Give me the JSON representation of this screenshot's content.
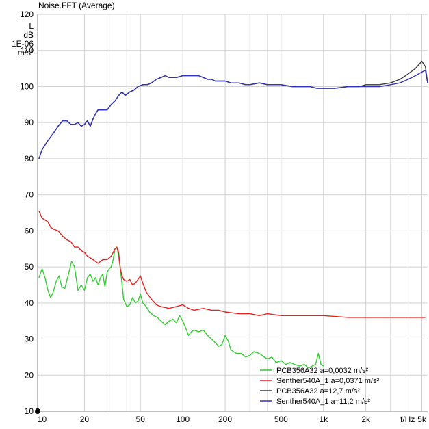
{
  "window_title": "Noise.FFT (Average)",
  "colors": {
    "background": "#ffffff",
    "grid": "#d0d0d0",
    "axis": "#7f7f7f"
  },
  "chart_data": {
    "type": "line",
    "title": "",
    "x_scale": "log",
    "xlim": [
      9.3,
      5500
    ],
    "ylim": [
      10,
      120
    ],
    "grid": true,
    "legend_placement": "bottom-right",
    "y_unit_label": [
      "L",
      "dB",
      "1E-06",
      "m/s²"
    ],
    "x_unit_label": "f/Hz",
    "y_ticks": [
      {
        "value": 10,
        "label": "10"
      },
      {
        "value": 20,
        "label": "20"
      },
      {
        "value": 30,
        "label": "30"
      },
      {
        "value": 40,
        "label": "40"
      },
      {
        "value": 50,
        "label": "50"
      },
      {
        "value": 60,
        "label": "60"
      },
      {
        "value": 70,
        "label": "70"
      },
      {
        "value": 80,
        "label": "80"
      },
      {
        "value": 90,
        "label": "90"
      },
      {
        "value": 100,
        "label": "100"
      },
      {
        "value": 110,
        "label": "110"
      },
      {
        "value": 120,
        "label": "120"
      }
    ],
    "x_ticks": [
      {
        "value": 10,
        "label": "10"
      },
      {
        "value": 20,
        "label": "20"
      },
      {
        "value": 50,
        "label": "50"
      },
      {
        "value": 100,
        "label": "100"
      },
      {
        "value": 200,
        "label": "200"
      },
      {
        "value": 500,
        "label": "500"
      },
      {
        "value": 1000,
        "label": "1k"
      },
      {
        "value": 2000,
        "label": "2k"
      },
      {
        "value": 5000,
        "label": "5k"
      }
    ],
    "x_minor_grid": [
      30,
      40,
      300,
      400,
      3000,
      4000
    ],
    "series": [
      {
        "name": "PCB356A32 a=0,0032 m/s²",
        "color": "#33cc33",
        "points": [
          [
            9.5,
            47
          ],
          [
            10,
            49.5
          ],
          [
            10.5,
            47
          ],
          [
            11,
            43.5
          ],
          [
            11.5,
            41.5
          ],
          [
            12,
            43
          ],
          [
            12.6,
            46
          ],
          [
            13.2,
            47.5
          ],
          [
            13.8,
            44.5
          ],
          [
            14.5,
            44
          ],
          [
            15.3,
            47.5
          ],
          [
            16.2,
            51.5
          ],
          [
            17,
            50
          ],
          [
            18,
            43.5
          ],
          [
            19,
            45
          ],
          [
            20,
            43.5
          ],
          [
            21,
            47
          ],
          [
            22,
            48
          ],
          [
            23,
            46
          ],
          [
            24,
            47
          ],
          [
            25,
            45
          ],
          [
            26,
            47
          ],
          [
            27,
            48
          ],
          [
            28,
            44.5
          ],
          [
            29,
            48.5
          ],
          [
            30,
            49.5
          ],
          [
            31,
            50
          ],
          [
            32,
            52
          ],
          [
            33,
            55
          ],
          [
            34,
            55.5
          ],
          [
            35,
            53
          ],
          [
            36,
            49.5
          ],
          [
            38,
            41
          ],
          [
            40,
            39
          ],
          [
            42,
            39.5
          ],
          [
            44,
            41.5
          ],
          [
            46,
            40
          ],
          [
            48,
            40.5
          ],
          [
            50,
            42.5
          ],
          [
            52,
            40
          ],
          [
            55,
            39
          ],
          [
            58,
            37.5
          ],
          [
            62,
            36.5
          ],
          [
            66,
            36
          ],
          [
            70,
            35
          ],
          [
            75,
            34
          ],
          [
            80,
            35
          ],
          [
            85,
            35.5
          ],
          [
            90,
            34.5
          ],
          [
            95,
            36.5
          ],
          [
            100,
            35
          ],
          [
            105,
            33
          ],
          [
            110,
            31
          ],
          [
            115,
            32
          ],
          [
            120,
            32.5
          ],
          [
            130,
            32
          ],
          [
            140,
            32.5
          ],
          [
            150,
            31
          ],
          [
            160,
            30
          ],
          [
            170,
            29
          ],
          [
            180,
            28
          ],
          [
            190,
            28.5
          ],
          [
            200,
            31
          ],
          [
            210,
            29.5
          ],
          [
            220,
            27
          ],
          [
            240,
            26
          ],
          [
            260,
            26
          ],
          [
            280,
            25
          ],
          [
            300,
            25.5
          ],
          [
            320,
            26.5
          ],
          [
            350,
            26
          ],
          [
            380,
            25
          ],
          [
            400,
            24.5
          ],
          [
            430,
            25
          ],
          [
            460,
            23.5
          ],
          [
            500,
            24
          ],
          [
            540,
            23
          ],
          [
            580,
            23.5
          ],
          [
            620,
            23
          ],
          [
            680,
            22.5
          ],
          [
            730,
            23
          ],
          [
            780,
            22
          ],
          [
            830,
            22.5
          ],
          [
            880,
            23
          ],
          [
            920,
            26
          ],
          [
            960,
            23
          ],
          [
            1000,
            22.5
          ]
        ]
      },
      {
        "name": "Senther540A_1 a=0,0371 m/s²",
        "color": "#e82020",
        "points": [
          [
            9.5,
            65.5
          ],
          [
            10,
            63.5
          ],
          [
            10.5,
            63
          ],
          [
            11,
            62.5
          ],
          [
            11.5,
            61
          ],
          [
            12,
            60.5
          ],
          [
            13,
            60
          ],
          [
            14,
            58.5
          ],
          [
            15,
            57.5
          ],
          [
            16,
            57
          ],
          [
            17,
            55.5
          ],
          [
            18,
            55.5
          ],
          [
            19,
            54.5
          ],
          [
            20,
            54
          ],
          [
            21,
            53
          ],
          [
            22,
            52.5
          ],
          [
            23,
            52
          ],
          [
            25,
            51
          ],
          [
            27,
            52
          ],
          [
            29,
            52
          ],
          [
            31,
            53
          ],
          [
            33,
            55
          ],
          [
            34,
            55.5
          ],
          [
            35,
            54
          ],
          [
            36,
            49.5
          ],
          [
            37,
            47.5
          ],
          [
            38,
            46.5
          ],
          [
            40,
            46
          ],
          [
            42,
            46.5
          ],
          [
            44,
            45
          ],
          [
            46,
            45.5
          ],
          [
            48,
            46.5
          ],
          [
            50,
            47.5
          ],
          [
            52,
            45.5
          ],
          [
            55,
            43
          ],
          [
            60,
            41
          ],
          [
            65,
            39.5
          ],
          [
            70,
            39
          ],
          [
            80,
            38.5
          ],
          [
            90,
            39
          ],
          [
            100,
            39.5
          ],
          [
            110,
            38.5
          ],
          [
            120,
            38
          ],
          [
            140,
            38.5
          ],
          [
            160,
            38
          ],
          [
            180,
            38
          ],
          [
            200,
            37.5
          ],
          [
            250,
            37
          ],
          [
            300,
            37
          ],
          [
            350,
            36.5
          ],
          [
            400,
            37
          ],
          [
            500,
            36.5
          ],
          [
            600,
            36.5
          ],
          [
            800,
            36.5
          ],
          [
            1000,
            36.5
          ],
          [
            1500,
            36
          ],
          [
            2000,
            36
          ],
          [
            3000,
            36
          ],
          [
            4000,
            36
          ],
          [
            5300,
            36
          ]
        ]
      },
      {
        "name": "PCB356A32 a=12,7 m/s²",
        "color": "#3a3a3a",
        "points": [
          [
            9.5,
            80
          ],
          [
            10,
            82.5
          ],
          [
            11,
            85
          ],
          [
            12,
            87
          ],
          [
            13,
            89
          ],
          [
            14,
            90.5
          ],
          [
            15,
            90.5
          ],
          [
            16,
            89.5
          ],
          [
            17,
            89.5
          ],
          [
            18,
            90
          ],
          [
            19,
            89
          ],
          [
            20,
            89.5
          ],
          [
            21,
            90.5
          ],
          [
            22,
            89
          ],
          [
            23,
            91
          ],
          [
            24,
            92.5
          ],
          [
            25,
            93.5
          ],
          [
            27,
            93.5
          ],
          [
            29,
            93.5
          ],
          [
            31,
            95
          ],
          [
            33,
            96
          ],
          [
            35,
            97.5
          ],
          [
            37,
            98.5
          ],
          [
            39,
            97.5
          ],
          [
            42,
            98.5
          ],
          [
            45,
            99
          ],
          [
            48,
            100
          ],
          [
            52,
            100.5
          ],
          [
            56,
            100.5
          ],
          [
            60,
            101
          ],
          [
            65,
            102
          ],
          [
            70,
            102.5
          ],
          [
            75,
            103
          ],
          [
            80,
            102.5
          ],
          [
            90,
            102.5
          ],
          [
            100,
            103
          ],
          [
            110,
            103
          ],
          [
            120,
            103
          ],
          [
            130,
            103
          ],
          [
            140,
            102.5
          ],
          [
            150,
            102
          ],
          [
            160,
            102
          ],
          [
            170,
            101.5
          ],
          [
            180,
            101.5
          ],
          [
            200,
            101.5
          ],
          [
            220,
            101
          ],
          [
            250,
            101
          ],
          [
            280,
            100.5
          ],
          [
            300,
            100.5
          ],
          [
            350,
            101
          ],
          [
            400,
            100.5
          ],
          [
            450,
            100.5
          ],
          [
            500,
            100.5
          ],
          [
            600,
            100
          ],
          [
            700,
            100
          ],
          [
            800,
            100
          ],
          [
            900,
            99.5
          ],
          [
            1000,
            99.5
          ],
          [
            1200,
            99.5
          ],
          [
            1500,
            100
          ],
          [
            1800,
            100
          ],
          [
            2000,
            100.5
          ],
          [
            2500,
            100.5
          ],
          [
            3000,
            101
          ],
          [
            3500,
            102
          ],
          [
            4000,
            103.5
          ],
          [
            4500,
            105
          ],
          [
            5000,
            107
          ],
          [
            5300,
            105.5
          ],
          [
            5500,
            101
          ]
        ]
      },
      {
        "name": "Senther540A_1 a=11,2 m/s²",
        "color": "#3030b8",
        "points": [
          [
            9.5,
            80
          ],
          [
            10,
            82.5
          ],
          [
            11,
            85
          ],
          [
            12,
            87
          ],
          [
            13,
            89
          ],
          [
            14,
            90.5
          ],
          [
            15,
            90.5
          ],
          [
            16,
            89.5
          ],
          [
            17,
            89.5
          ],
          [
            18,
            90
          ],
          [
            19,
            89
          ],
          [
            20,
            89.5
          ],
          [
            21,
            90.5
          ],
          [
            22,
            89
          ],
          [
            23,
            91
          ],
          [
            24,
            92.5
          ],
          [
            25,
            93.5
          ],
          [
            27,
            93.5
          ],
          [
            29,
            93.5
          ],
          [
            31,
            95
          ],
          [
            33,
            96
          ],
          [
            35,
            97.5
          ],
          [
            37,
            98.5
          ],
          [
            39,
            97.5
          ],
          [
            42,
            98.5
          ],
          [
            45,
            99
          ],
          [
            48,
            100
          ],
          [
            52,
            100.5
          ],
          [
            56,
            100.5
          ],
          [
            60,
            101
          ],
          [
            65,
            102
          ],
          [
            70,
            102.5
          ],
          [
            75,
            103
          ],
          [
            80,
            102.5
          ],
          [
            90,
            102.5
          ],
          [
            100,
            103
          ],
          [
            110,
            103
          ],
          [
            120,
            103
          ],
          [
            130,
            103
          ],
          [
            140,
            102.5
          ],
          [
            150,
            102
          ],
          [
            160,
            102
          ],
          [
            170,
            101.5
          ],
          [
            180,
            101.5
          ],
          [
            200,
            101.5
          ],
          [
            220,
            101
          ],
          [
            250,
            101
          ],
          [
            280,
            100.5
          ],
          [
            300,
            100.5
          ],
          [
            350,
            101
          ],
          [
            400,
            100.5
          ],
          [
            450,
            100.5
          ],
          [
            500,
            100.5
          ],
          [
            600,
            100
          ],
          [
            700,
            100
          ],
          [
            800,
            100
          ],
          [
            900,
            99.5
          ],
          [
            1000,
            99.5
          ],
          [
            1200,
            99.5
          ],
          [
            1500,
            100
          ],
          [
            1800,
            100
          ],
          [
            2000,
            100
          ],
          [
            2500,
            100
          ],
          [
            3000,
            100.5
          ],
          [
            3500,
            101
          ],
          [
            4000,
            102
          ],
          [
            4500,
            103
          ],
          [
            5000,
            104
          ],
          [
            5300,
            104.5
          ],
          [
            5500,
            101
          ]
        ]
      }
    ]
  }
}
